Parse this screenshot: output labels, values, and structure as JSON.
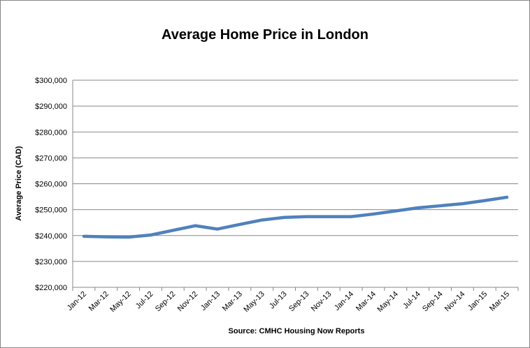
{
  "chart_data": {
    "type": "line",
    "title": "Average Home Price in London",
    "ylabel": "Average Price  (CAD)",
    "xlabel": "Source: CMHC Housing Now Reports",
    "categories": [
      "Jan-12",
      "Mar-12",
      "May-12",
      "Jul-12",
      "Sep-12",
      "Nov-12",
      "Jan-13",
      "Mar-13",
      "May-13",
      "Jul-13",
      "Sep-13",
      "Nov-13",
      "Jan-14",
      "Mar-14",
      "May-14",
      "Jul-14",
      "Sep-14",
      "Nov-14",
      "Jan-15",
      "Mar-15"
    ],
    "series": [
      {
        "name": "Average Price",
        "color": "#4f81bd",
        "values": [
          239700,
          239500,
          239400,
          240200,
          242000,
          243800,
          242500,
          244300,
          246000,
          247000,
          247300,
          247300,
          247300,
          248300,
          249500,
          250700,
          251500,
          252300,
          253500,
          254800
        ]
      }
    ],
    "ylim": [
      220000,
      300000
    ],
    "yticks": [
      {
        "value": 220000,
        "label": "$220,000"
      },
      {
        "value": 230000,
        "label": "$230,000"
      },
      {
        "value": 240000,
        "label": "$240,000"
      },
      {
        "value": 250000,
        "label": "$250,000"
      },
      {
        "value": 260000,
        "label": "$260,000"
      },
      {
        "value": 270000,
        "label": "$270,000"
      },
      {
        "value": 280000,
        "label": "$280,000"
      },
      {
        "value": 290000,
        "label": "$290,000"
      },
      {
        "value": 300000,
        "label": "$300,000"
      }
    ],
    "grid": true
  }
}
